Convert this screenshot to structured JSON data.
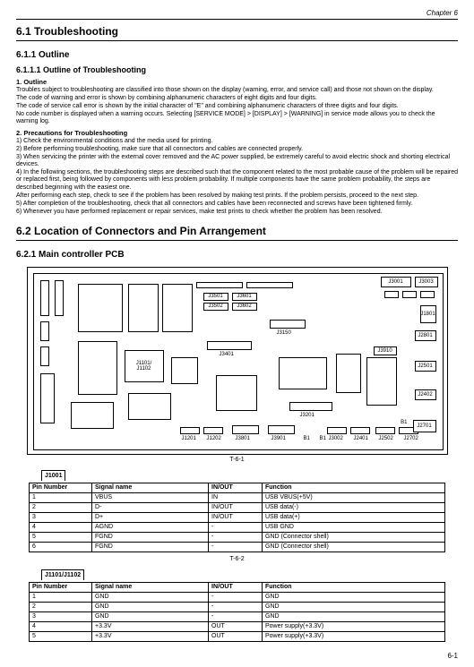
{
  "chapter": "Chapter 6",
  "h1": "6.1 Troubleshooting",
  "h2_1": "6.1.1 Outline",
  "h3_1": "6.1.1.1 Outline of Troubleshooting",
  "sub1": "1. Outline",
  "p1": "Troubles subject to troubleshooting are classified into those shown on the display (warning, error, and service call) and those not shown on the display.",
  "p2": "The code of warning and error is shown by combining alphanumeric characters of eight digits and four digits.",
  "p3": "The code of service call error is shown by the initial character of \"E\" and combining alphanumeric characters of three digits and four digits.",
  "p4": "No code number is displayed when a warning occurs. Selecting [SERVICE MODE] > [DISPLAY] > [WARNING] in service mode allows you to check the warning log.",
  "sub2": "2. Precautions for Troubleshooting",
  "q1": "1) Check the environmental conditions and the media used for printing.",
  "q2": "2) Before performing troubleshooting, make sure that all connectors and cables are connected properly.",
  "q3": "3) When servicing the printer with the external cover removed and the AC power supplied, be extremely careful to avoid electric shock and shorting electrical devices.",
  "q4": "4) In the following sections, the troubleshooting steps are described such that the component related to the most probable cause of the problem will be repaired or replaced first, being followed by components with less problem probability. If multiple components have the same problem probability, the steps are described beginning with the easiest one.",
  "q4b": "After performing each step, check to see if the problem has been resolved by making test prints. If the problem persists, proceed to the next step.",
  "q5": "5) After completion of the troubleshooting, check that all connectors and cables have been reconnected and screws have been tightened firmly.",
  "q6": "6) Whenever you have performed replacement or repair services, make test prints to check whether the problem has been resolved.",
  "h1_2": "6.2 Location of Connectors and Pin Arrangement",
  "h2_2": "6.2.1 Main controller PCB",
  "diag_label": "T-6-1",
  "diag": {
    "j3001": "J3001",
    "j3003": "J3003",
    "j3501": "J3501",
    "j3601": "J3601",
    "j3502": "J3502",
    "j3602": "J3602",
    "j3150": "J3150",
    "j3401": "J3401",
    "j1101": "J1101/",
    "j1102": "J1102",
    "j3201": "J3201",
    "j1201": "J1201",
    "j1202": "J1202",
    "j3801": "J3801",
    "j3901": "J3901",
    "b1a": "B1",
    "b1b": "B1",
    "b1c": "B1",
    "j3002": "J3002",
    "j2401": "J2401",
    "j2502": "J2502",
    "j2702": "J2702",
    "j2701": "J2701",
    "j1801": "J1801",
    "j2801": "J2801",
    "j3910": "J3910",
    "j2501": "J2501",
    "j2402": "J2402"
  },
  "t1": {
    "caption": "J1001",
    "cols": [
      "Pin Number",
      "Signal name",
      "IN/OUT",
      "Function"
    ],
    "rows": [
      [
        "1",
        "VBUS",
        "IN",
        "USB VBUS(+5V)"
      ],
      [
        "2",
        "D-",
        "IN/OUT",
        "USB data(-)"
      ],
      [
        "3",
        "D+",
        "IN/OUT",
        "USB data(+)"
      ],
      [
        "4",
        "AGND",
        "-",
        "USB GND"
      ],
      [
        "5",
        "FGND",
        "-",
        "GND (Connector shell)"
      ],
      [
        "6",
        "FGND",
        "-",
        "GND (Connector shell)"
      ]
    ]
  },
  "t1_label": "T-6-2",
  "t2": {
    "caption": "J1101/J1102",
    "cols": [
      "Pin Number",
      "Signal name",
      "IN/OUT",
      "Function"
    ],
    "rows": [
      [
        "1",
        "GND",
        "-",
        "GND"
      ],
      [
        "2",
        "GND",
        "-",
        "GND"
      ],
      [
        "3",
        "GND",
        "-",
        "GND"
      ],
      [
        "4",
        "+3.3V",
        "OUT",
        "Power supply(+3.3V)"
      ],
      [
        "5",
        "+3.3V",
        "OUT",
        "Power supply(+3.3V)"
      ]
    ]
  },
  "pagenum": "6-1"
}
